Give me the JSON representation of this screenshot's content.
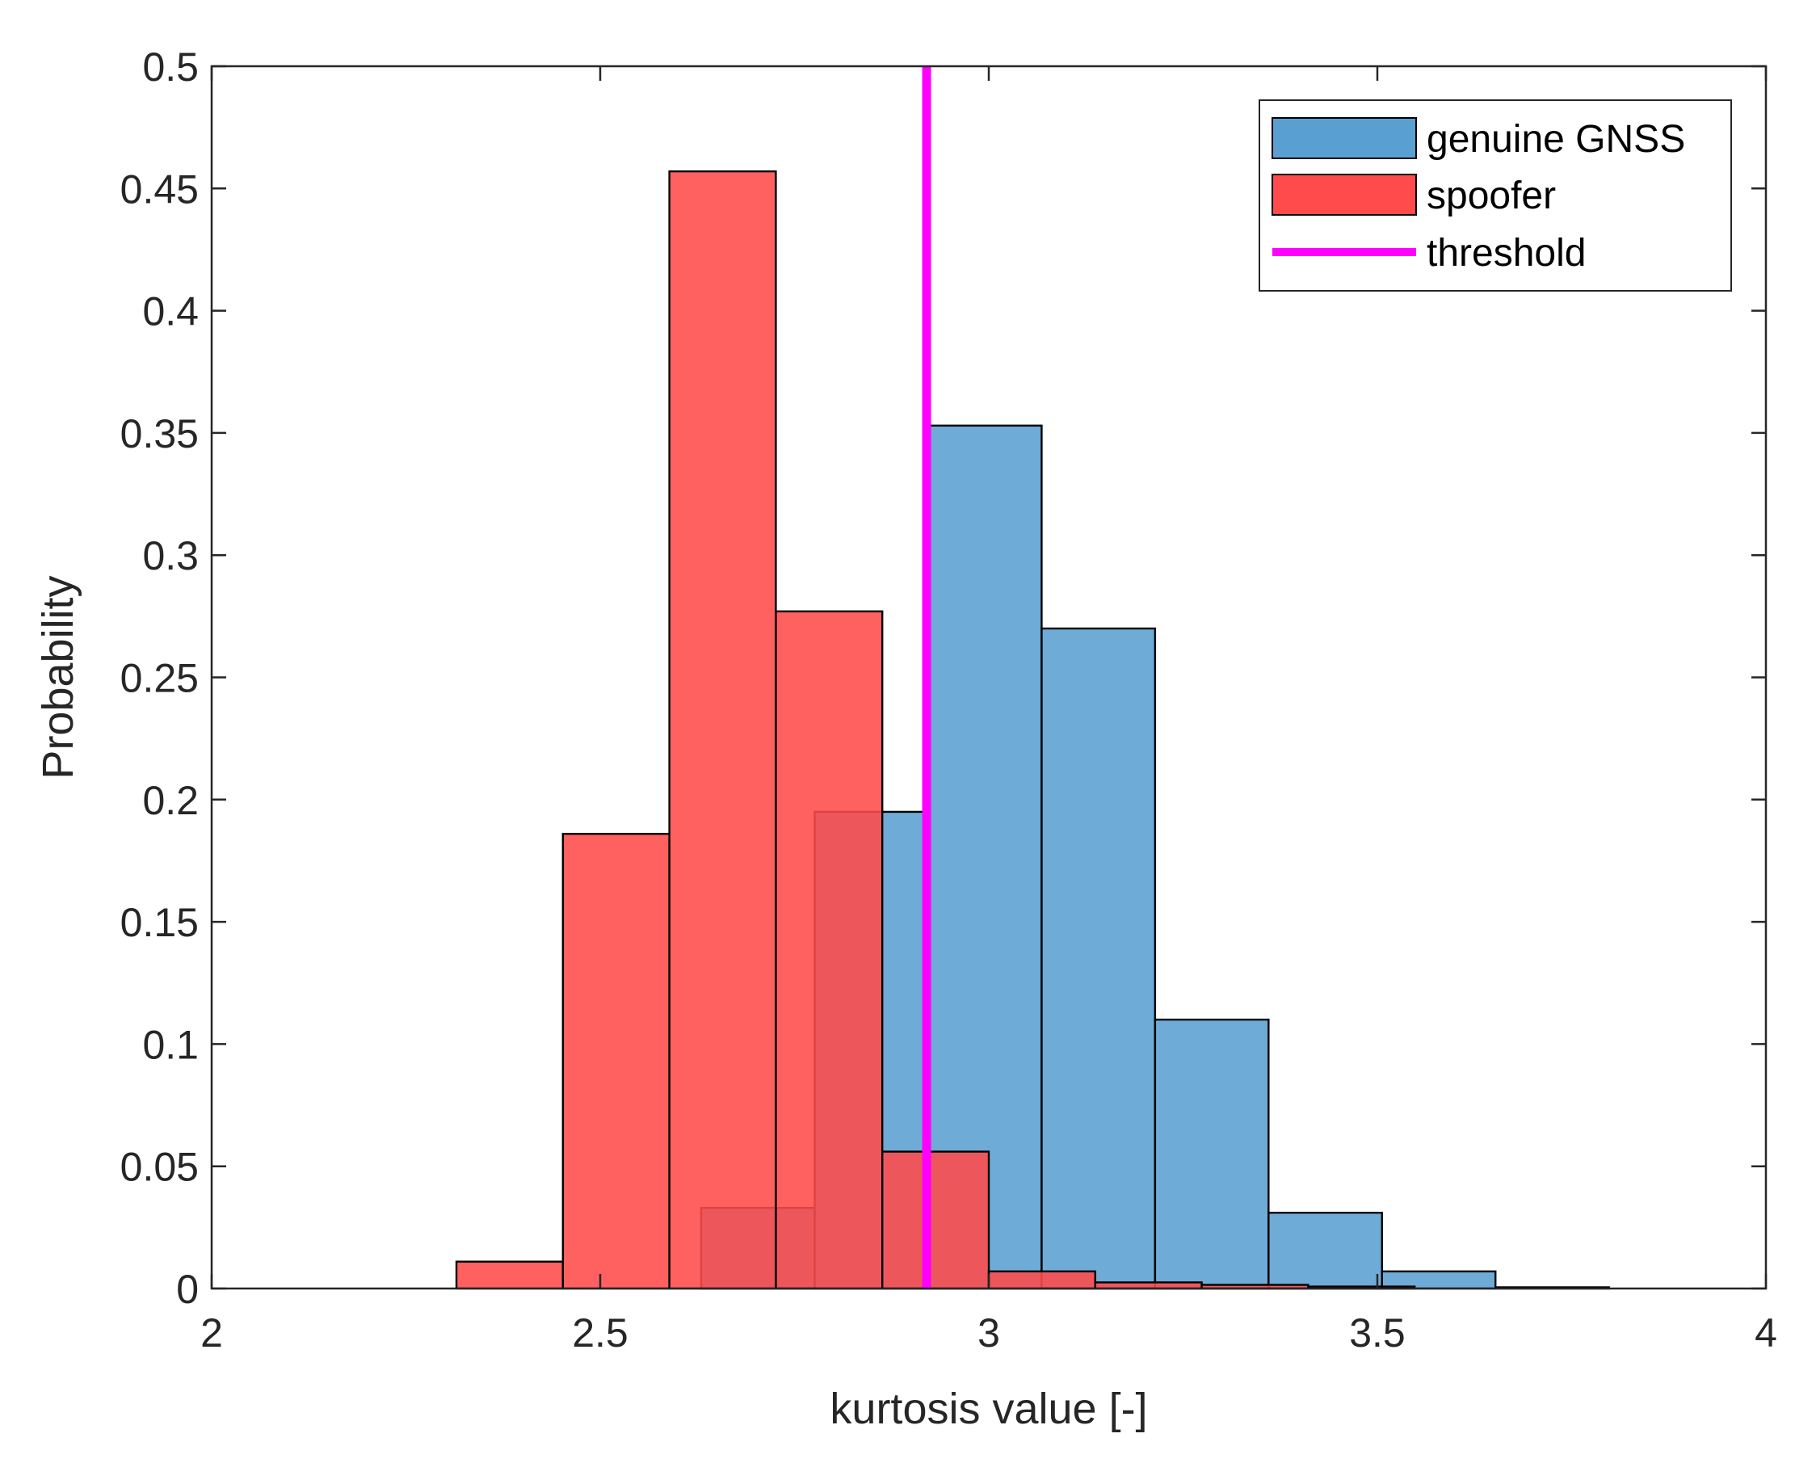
{
  "chart_data": {
    "type": "bar",
    "title": "",
    "xlabel": "kurtosis value [-]",
    "ylabel": "Probability",
    "xlim": [
      2,
      4
    ],
    "ylim": [
      0,
      0.5
    ],
    "xticks": [
      "2",
      "2.5",
      "3",
      "3.5",
      "4"
    ],
    "yticks": [
      "0",
      "0.05",
      "0.1",
      "0.15",
      "0.2",
      "0.25",
      "0.3",
      "0.35",
      "0.4",
      "0.45",
      "0.5"
    ],
    "grid": false,
    "legend_position": "top-right",
    "series": [
      {
        "name": "genuine GNSS",
        "color": "#5a9fd2",
        "bin_edges": [
          2.63,
          2.776,
          2.922,
          3.068,
          3.214,
          3.36,
          3.506,
          3.652,
          3.798
        ],
        "values": [
          0.033,
          0.195,
          0.353,
          0.27,
          0.11,
          0.031,
          0.007,
          0.0005
        ]
      },
      {
        "name": "spoofer",
        "color": "#ff4b4b",
        "bin_edges": [
          2.315,
          2.452,
          2.589,
          2.726,
          2.863,
          3.0,
          3.137,
          3.274,
          3.411,
          3.548
        ],
        "values": [
          0.011,
          0.186,
          0.457,
          0.277,
          0.056,
          0.007,
          0.0025,
          0.0015,
          0.0008
        ]
      }
    ],
    "threshold": {
      "name": "threshold",
      "x": 2.92,
      "color": "#ff00ff"
    }
  }
}
